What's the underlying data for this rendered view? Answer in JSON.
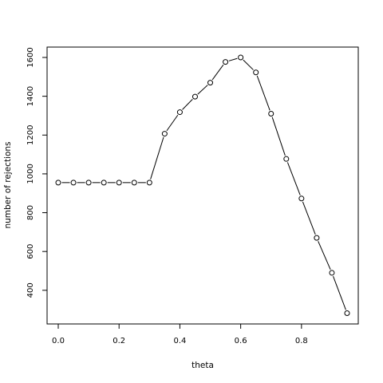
{
  "chart_data": {
    "type": "line",
    "title": "",
    "xlabel": "theta",
    "ylabel": "number of rejections",
    "xlim": [
      0,
      0.95
    ],
    "ylim": [
      280,
      1600
    ],
    "x_ticks": [
      0.0,
      0.2,
      0.4,
      0.6,
      0.8
    ],
    "x_tick_labels": [
      "0.0",
      "0.2",
      "0.4",
      "0.6",
      "0.8"
    ],
    "y_ticks": [
      400,
      600,
      800,
      1000,
      1200,
      1400,
      1600
    ],
    "y_tick_labels": [
      "400",
      "600",
      "800",
      "1000",
      "1200",
      "1400",
      "1600"
    ],
    "grid": false,
    "legend": "none",
    "marker": "open-circle",
    "series": [
      {
        "x": [
          0.0,
          0.05,
          0.1,
          0.15,
          0.2,
          0.25,
          0.3,
          0.35,
          0.4,
          0.45,
          0.5,
          0.55,
          0.6,
          0.65,
          0.7,
          0.75,
          0.8,
          0.85,
          0.9,
          0.95
        ],
        "values": [
          955,
          955,
          955,
          955,
          955,
          955,
          955,
          1207,
          1318,
          1398,
          1470,
          1577,
          1600,
          1523,
          1310,
          1077,
          873,
          670,
          490,
          282
        ]
      }
    ],
    "colors": {
      "line": "#000000",
      "background": "#ffffff"
    }
  }
}
